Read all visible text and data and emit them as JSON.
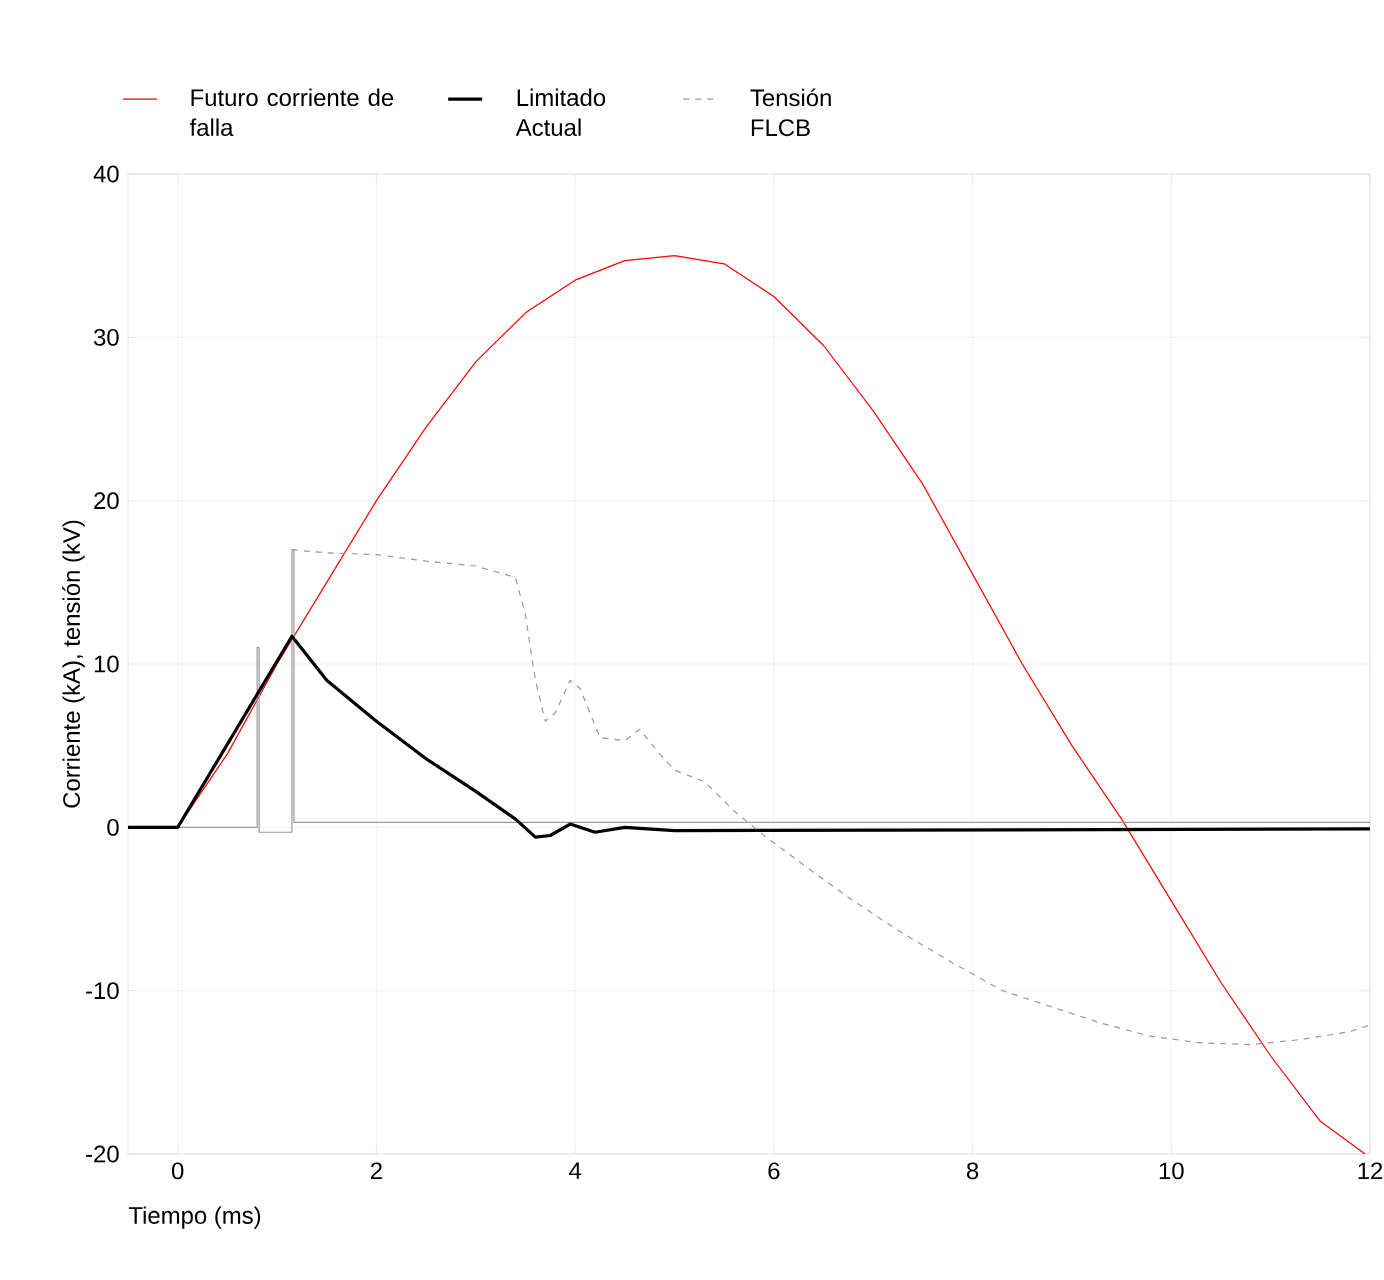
{
  "chart_data": {
    "type": "line",
    "xlabel": "Tiempo (ms)",
    "ylabel": "Corriente (kA), tensión (kV)",
    "xlim": [
      -0.5,
      12
    ],
    "ylim": [
      -20,
      40
    ],
    "xticks": [
      0,
      2,
      4,
      6,
      8,
      10,
      12
    ],
    "yticks": [
      -20,
      -10,
      0,
      10,
      20,
      30,
      40
    ],
    "grid": true,
    "legend": "top left",
    "marker": "none",
    "series": [
      {
        "name": "Futuro corriente de falla",
        "color": "#ff0000",
        "line_style": "solid",
        "x": [
          0,
          0.5,
          1,
          1.5,
          2,
          2.5,
          3,
          3.5,
          4,
          4.5,
          5,
          5.5,
          6,
          6.5,
          7,
          7.5,
          8,
          8.5,
          9,
          9.5,
          10,
          10.5,
          11,
          11.5,
          11.95
        ],
        "values": [
          0,
          4.5,
          10,
          15,
          20,
          24.5,
          28.5,
          31.5,
          33.5,
          34.7,
          35,
          34.5,
          32.5,
          29.5,
          25.5,
          21,
          15.5,
          10,
          5,
          0.5,
          -4.5,
          -9.5,
          -14,
          -18,
          -20
        ]
      },
      {
        "color": "#999999",
        "line_style": "solid",
        "x": [
          -0.5,
          0.8,
          0.8,
          0.82,
          0.82,
          1.15,
          1.15,
          1.17,
          1.17,
          12
        ],
        "values": [
          0,
          0,
          11,
          11,
          -0.3,
          -0.3,
          17,
          17,
          0.3,
          0.3
        ]
      },
      {
        "name": "Limitado Actual",
        "color": "#000000",
        "line_style": "solid",
        "x": [
          -0.5,
          0,
          1.15,
          1.5,
          2,
          2.5,
          3,
          3.4,
          3.6,
          3.75,
          3.95,
          4.2,
          4.5,
          5,
          12
        ],
        "values": [
          0,
          0,
          11.7,
          9,
          6.5,
          4.2,
          2.2,
          0.5,
          -0.6,
          -0.5,
          0.2,
          -0.3,
          0,
          -0.2,
          -0.1
        ]
      },
      {
        "name": "Tensión FLCB",
        "color": "#999999",
        "line_style": "dashed",
        "x": [
          1.15,
          1.5,
          2,
          2.5,
          3,
          3.4,
          3.5,
          3.6,
          3.7,
          3.8,
          3.95,
          4.05,
          4.25,
          4.5,
          4.65,
          4.85,
          5,
          5.3,
          5.6,
          5.9,
          6.3,
          6.8,
          7.3,
          7.8,
          8.3,
          8.8,
          9.3,
          9.8,
          10.3,
          10.8,
          11.3,
          11.8,
          12
        ],
        "values": [
          17,
          16.8,
          16.7,
          16.3,
          16,
          15.3,
          13,
          9,
          6.5,
          7,
          9,
          8.5,
          5.5,
          5.3,
          6,
          4.5,
          3.5,
          2.8,
          1,
          -0.5,
          -2.3,
          -4.5,
          -6.5,
          -8.3,
          -10,
          -11,
          -12,
          -12.8,
          -13.2,
          -13.3,
          -13,
          -12.5,
          -12.1
        ]
      }
    ]
  }
}
